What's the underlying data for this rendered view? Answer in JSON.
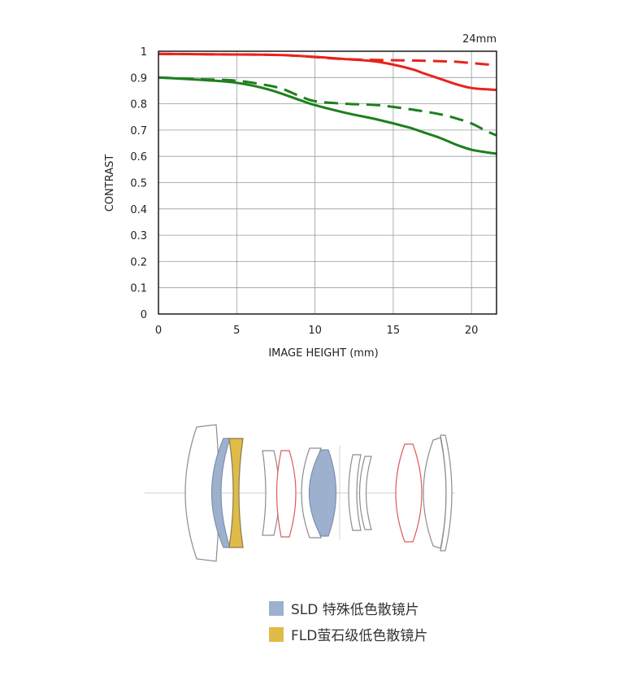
{
  "chart_data": {
    "type": "line",
    "title": "24mm",
    "xlabel": "IMAGE HEIGHT (mm)",
    "ylabel": "CONTRAST",
    "xlim": [
      0,
      21.6
    ],
    "ylim": [
      0,
      1
    ],
    "x_ticks": [
      0,
      5,
      10,
      15,
      20
    ],
    "y_ticks": [
      0,
      0.1,
      0.2,
      0.3,
      0.4,
      0.5,
      0.6,
      0.7,
      0.8,
      0.9,
      1
    ],
    "y_tick_labels": [
      "0",
      "0.1",
      "0.2",
      "0.3",
      "0.4",
      "0.5",
      "0.6",
      "0.7",
      "0.8",
      "0.9",
      "1"
    ],
    "grid": true,
    "series": [
      {
        "color": "#e8231e",
        "style": "solid",
        "x": [
          0,
          4,
          8,
          12,
          14,
          16,
          17,
          18,
          19,
          20,
          21,
          21.6
        ],
        "y": [
          0.99,
          0.988,
          0.985,
          0.97,
          0.96,
          0.935,
          0.915,
          0.895,
          0.875,
          0.86,
          0.855,
          0.853
        ]
      },
      {
        "color": "#e8231e",
        "style": "dashed",
        "x": [
          0,
          4,
          8,
          12,
          16,
          18,
          19,
          20,
          21,
          21.6
        ],
        "y": [
          0.99,
          0.988,
          0.985,
          0.97,
          0.965,
          0.962,
          0.96,
          0.955,
          0.95,
          0.946
        ]
      },
      {
        "color": "#1e7f1e",
        "style": "solid",
        "x": [
          0,
          3,
          5,
          7,
          9,
          10,
          12,
          14,
          16,
          17,
          18,
          19,
          20,
          21,
          21.6
        ],
        "y": [
          0.9,
          0.89,
          0.88,
          0.855,
          0.815,
          0.795,
          0.765,
          0.74,
          0.71,
          0.69,
          0.67,
          0.645,
          0.625,
          0.615,
          0.61
        ]
      },
      {
        "color": "#1e7f1e",
        "style": "dashed",
        "x": [
          0,
          3,
          5,
          7,
          8,
          9,
          10,
          12,
          14,
          16,
          18,
          19,
          20,
          21,
          21.6
        ],
        "y": [
          0.9,
          0.893,
          0.888,
          0.87,
          0.855,
          0.83,
          0.81,
          0.8,
          0.795,
          0.78,
          0.76,
          0.745,
          0.725,
          0.695,
          0.68
        ]
      }
    ]
  },
  "legend": [
    {
      "color": "#9db1cf",
      "label": "SLD 特殊低色散镜片"
    },
    {
      "color": "#dfbb48",
      "label": "FLD萤石级低色散镜片"
    }
  ]
}
